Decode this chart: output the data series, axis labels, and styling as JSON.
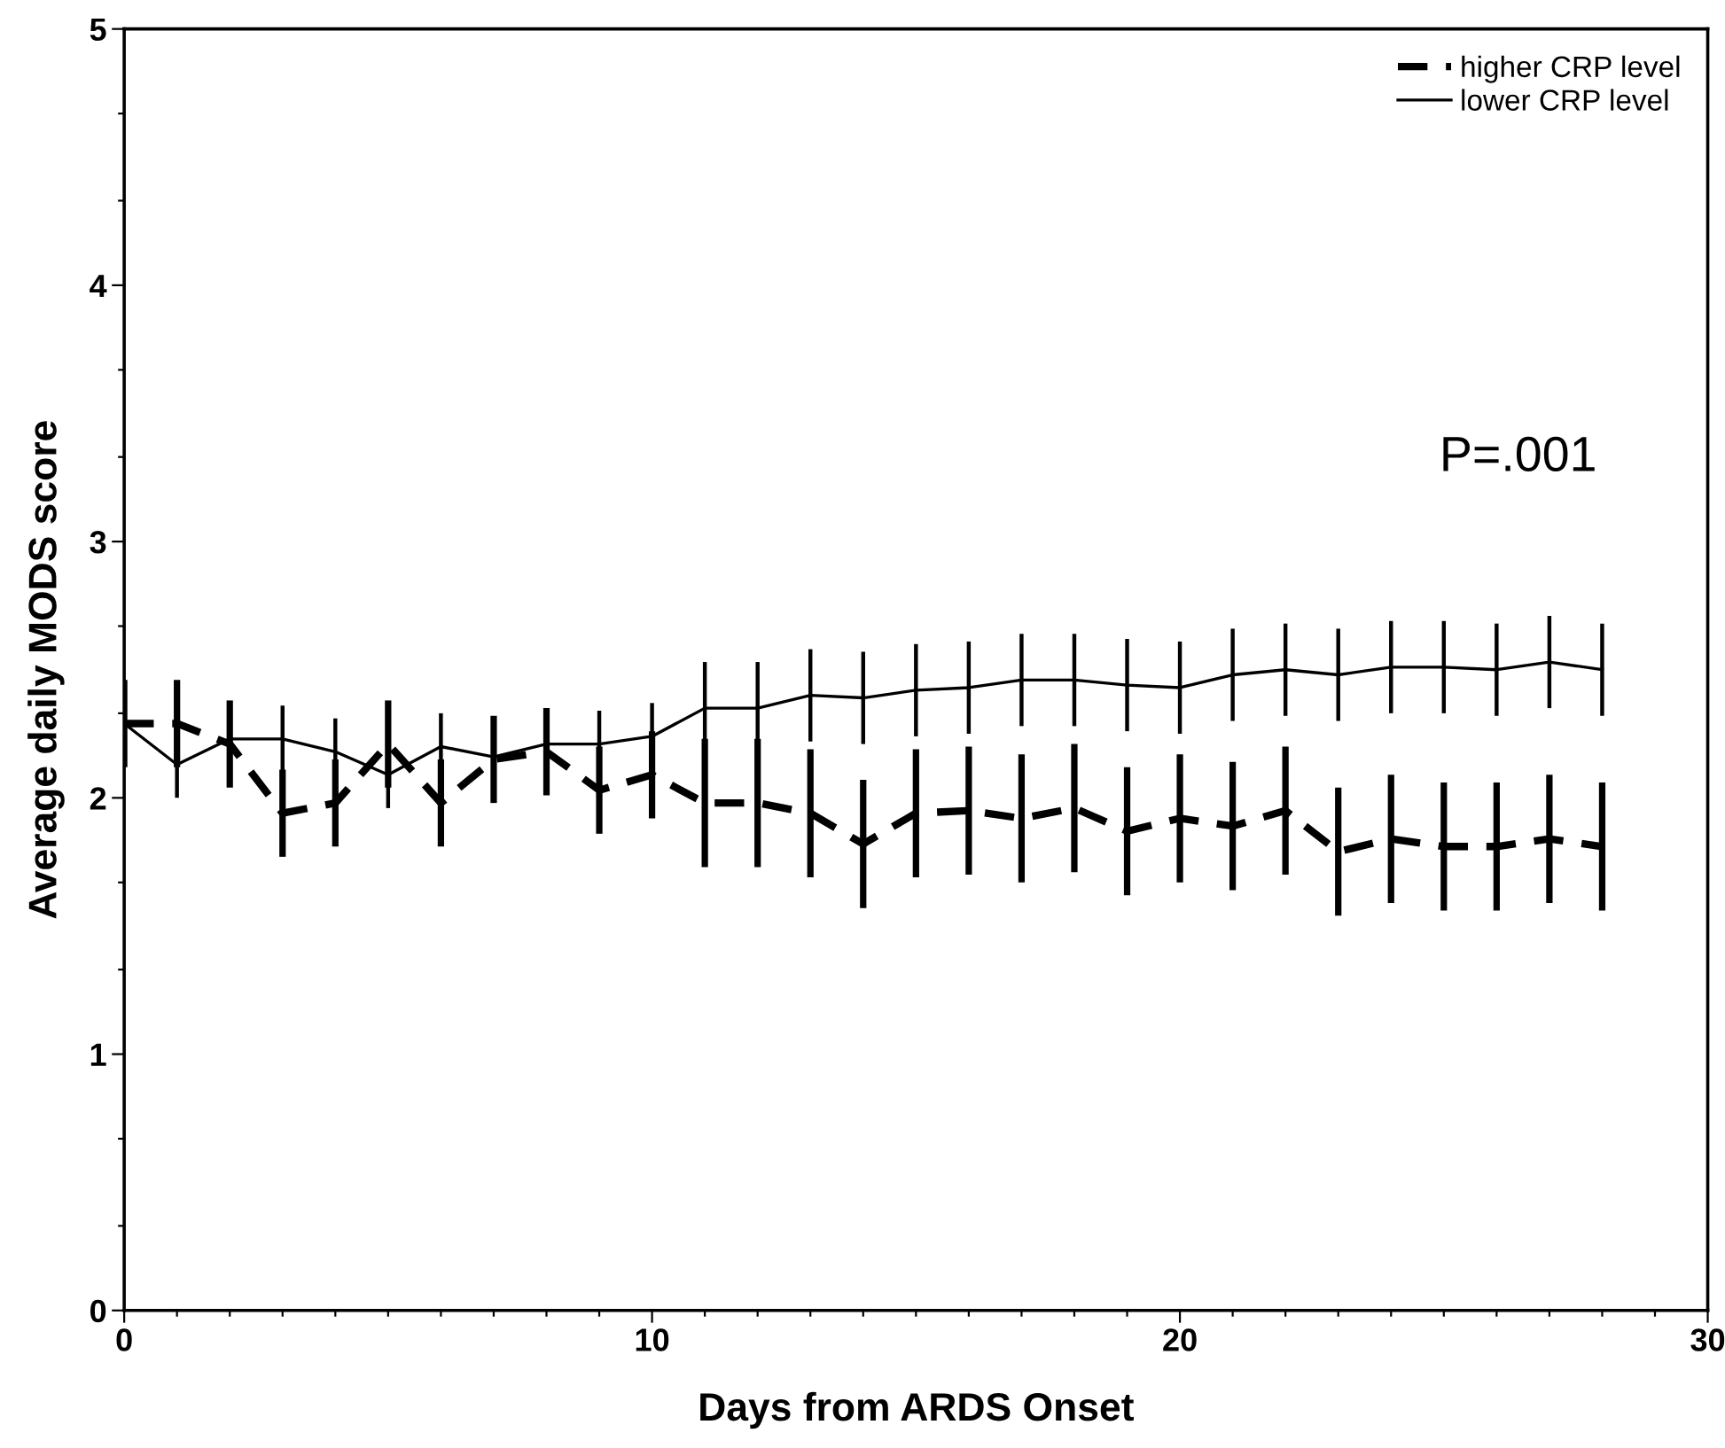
{
  "chart_data": {
    "type": "line",
    "xlabel": "Days from ARDS Onset",
    "ylabel": "Average daily MODS score",
    "x": [
      0,
      1,
      2,
      3,
      4,
      5,
      6,
      7,
      8,
      9,
      10,
      11,
      12,
      13,
      14,
      15,
      16,
      17,
      18,
      19,
      20,
      21,
      22,
      23,
      24,
      25,
      26,
      27,
      28
    ],
    "series": [
      {
        "name": "higher CRP level",
        "color": "#000000",
        "line_style": "dashed",
        "values": [
          2.29,
          2.29,
          2.21,
          1.94,
          1.98,
          2.21,
          1.98,
          2.15,
          2.18,
          2.03,
          2.09,
          1.98,
          1.98,
          1.94,
          1.82,
          1.94,
          1.95,
          1.92,
          1.96,
          1.87,
          1.92,
          1.89,
          1.95,
          1.79,
          1.84,
          1.81,
          1.81,
          1.84,
          1.81
        ],
        "errors": [
          0.17,
          0.17,
          0.17,
          0.17,
          0.17,
          0.17,
          0.17,
          0.17,
          0.17,
          0.17,
          0.17,
          0.25,
          0.25,
          0.25,
          0.25,
          0.25,
          0.25,
          0.25,
          0.25,
          0.25,
          0.25,
          0.25,
          0.25,
          0.25,
          0.25,
          0.25,
          0.25,
          0.25,
          0.25
        ]
      },
      {
        "name": "lower CRP level",
        "color": "#000000",
        "line_style": "solid",
        "values": [
          2.29,
          2.13,
          2.23,
          2.23,
          2.18,
          2.09,
          2.2,
          2.16,
          2.21,
          2.21,
          2.24,
          2.35,
          2.35,
          2.4,
          2.39,
          2.42,
          2.43,
          2.46,
          2.46,
          2.44,
          2.43,
          2.48,
          2.5,
          2.48,
          2.51,
          2.51,
          2.5,
          2.53,
          2.5
        ],
        "errors": [
          0.13,
          0.13,
          0.13,
          0.13,
          0.13,
          0.13,
          0.13,
          0.13,
          0.13,
          0.13,
          0.13,
          0.18,
          0.18,
          0.18,
          0.18,
          0.18,
          0.18,
          0.18,
          0.18,
          0.18,
          0.18,
          0.18,
          0.18,
          0.18,
          0.18,
          0.18,
          0.18,
          0.18,
          0.18
        ]
      }
    ],
    "xlim": [
      0,
      30
    ],
    "xticks": [
      0,
      {
        "value": 1,
        "label": null
      },
      {
        "value": 2,
        "label": null
      },
      {
        "value": 3,
        "label": null
      },
      {
        "value": 4,
        "label": null
      },
      {
        "value": 5,
        "label": null
      },
      {
        "value": 6,
        "label": null
      },
      {
        "value": 7,
        "label": null
      },
      {
        "value": 8,
        "label": null
      },
      {
        "value": 9,
        "label": null
      },
      10,
      {
        "value": 11,
        "label": null
      },
      {
        "value": 12,
        "label": null
      },
      {
        "value": 13,
        "label": null
      },
      {
        "value": 14,
        "label": null
      },
      {
        "value": 15,
        "label": null
      },
      {
        "value": 16,
        "label": null
      },
      {
        "value": 17,
        "label": null
      },
      {
        "value": 18,
        "label": null
      },
      {
        "value": 19,
        "label": null
      },
      20,
      {
        "value": 21,
        "label": null
      },
      {
        "value": 22,
        "label": null
      },
      {
        "value": 23,
        "label": null
      },
      {
        "value": 24,
        "label": null
      },
      {
        "value": 25,
        "label": null
      },
      {
        "value": 26,
        "label": null
      },
      {
        "value": 27,
        "label": null
      },
      {
        "value": 28,
        "label": null
      },
      {
        "value": 29,
        "label": null
      },
      30
    ],
    "ylim": [
      0,
      5
    ],
    "yticks": [
      0,
      {
        "value": 0.33,
        "label": null
      },
      {
        "value": 0.67,
        "label": null
      },
      1,
      {
        "value": 1.33,
        "label": null
      },
      {
        "value": 1.67,
        "label": null
      },
      2,
      {
        "value": 2.33,
        "label": null
      },
      {
        "value": 2.67,
        "label": null
      },
      3,
      {
        "value": 3.33,
        "label": null
      },
      {
        "value": 3.67,
        "label": null
      },
      4,
      {
        "value": 4.33,
        "label": null
      },
      {
        "value": 4.67,
        "label": null
      },
      5
    ],
    "annotations": [
      "P=.001"
    ],
    "grid": false,
    "legend": "top right",
    "marker": "none"
  }
}
